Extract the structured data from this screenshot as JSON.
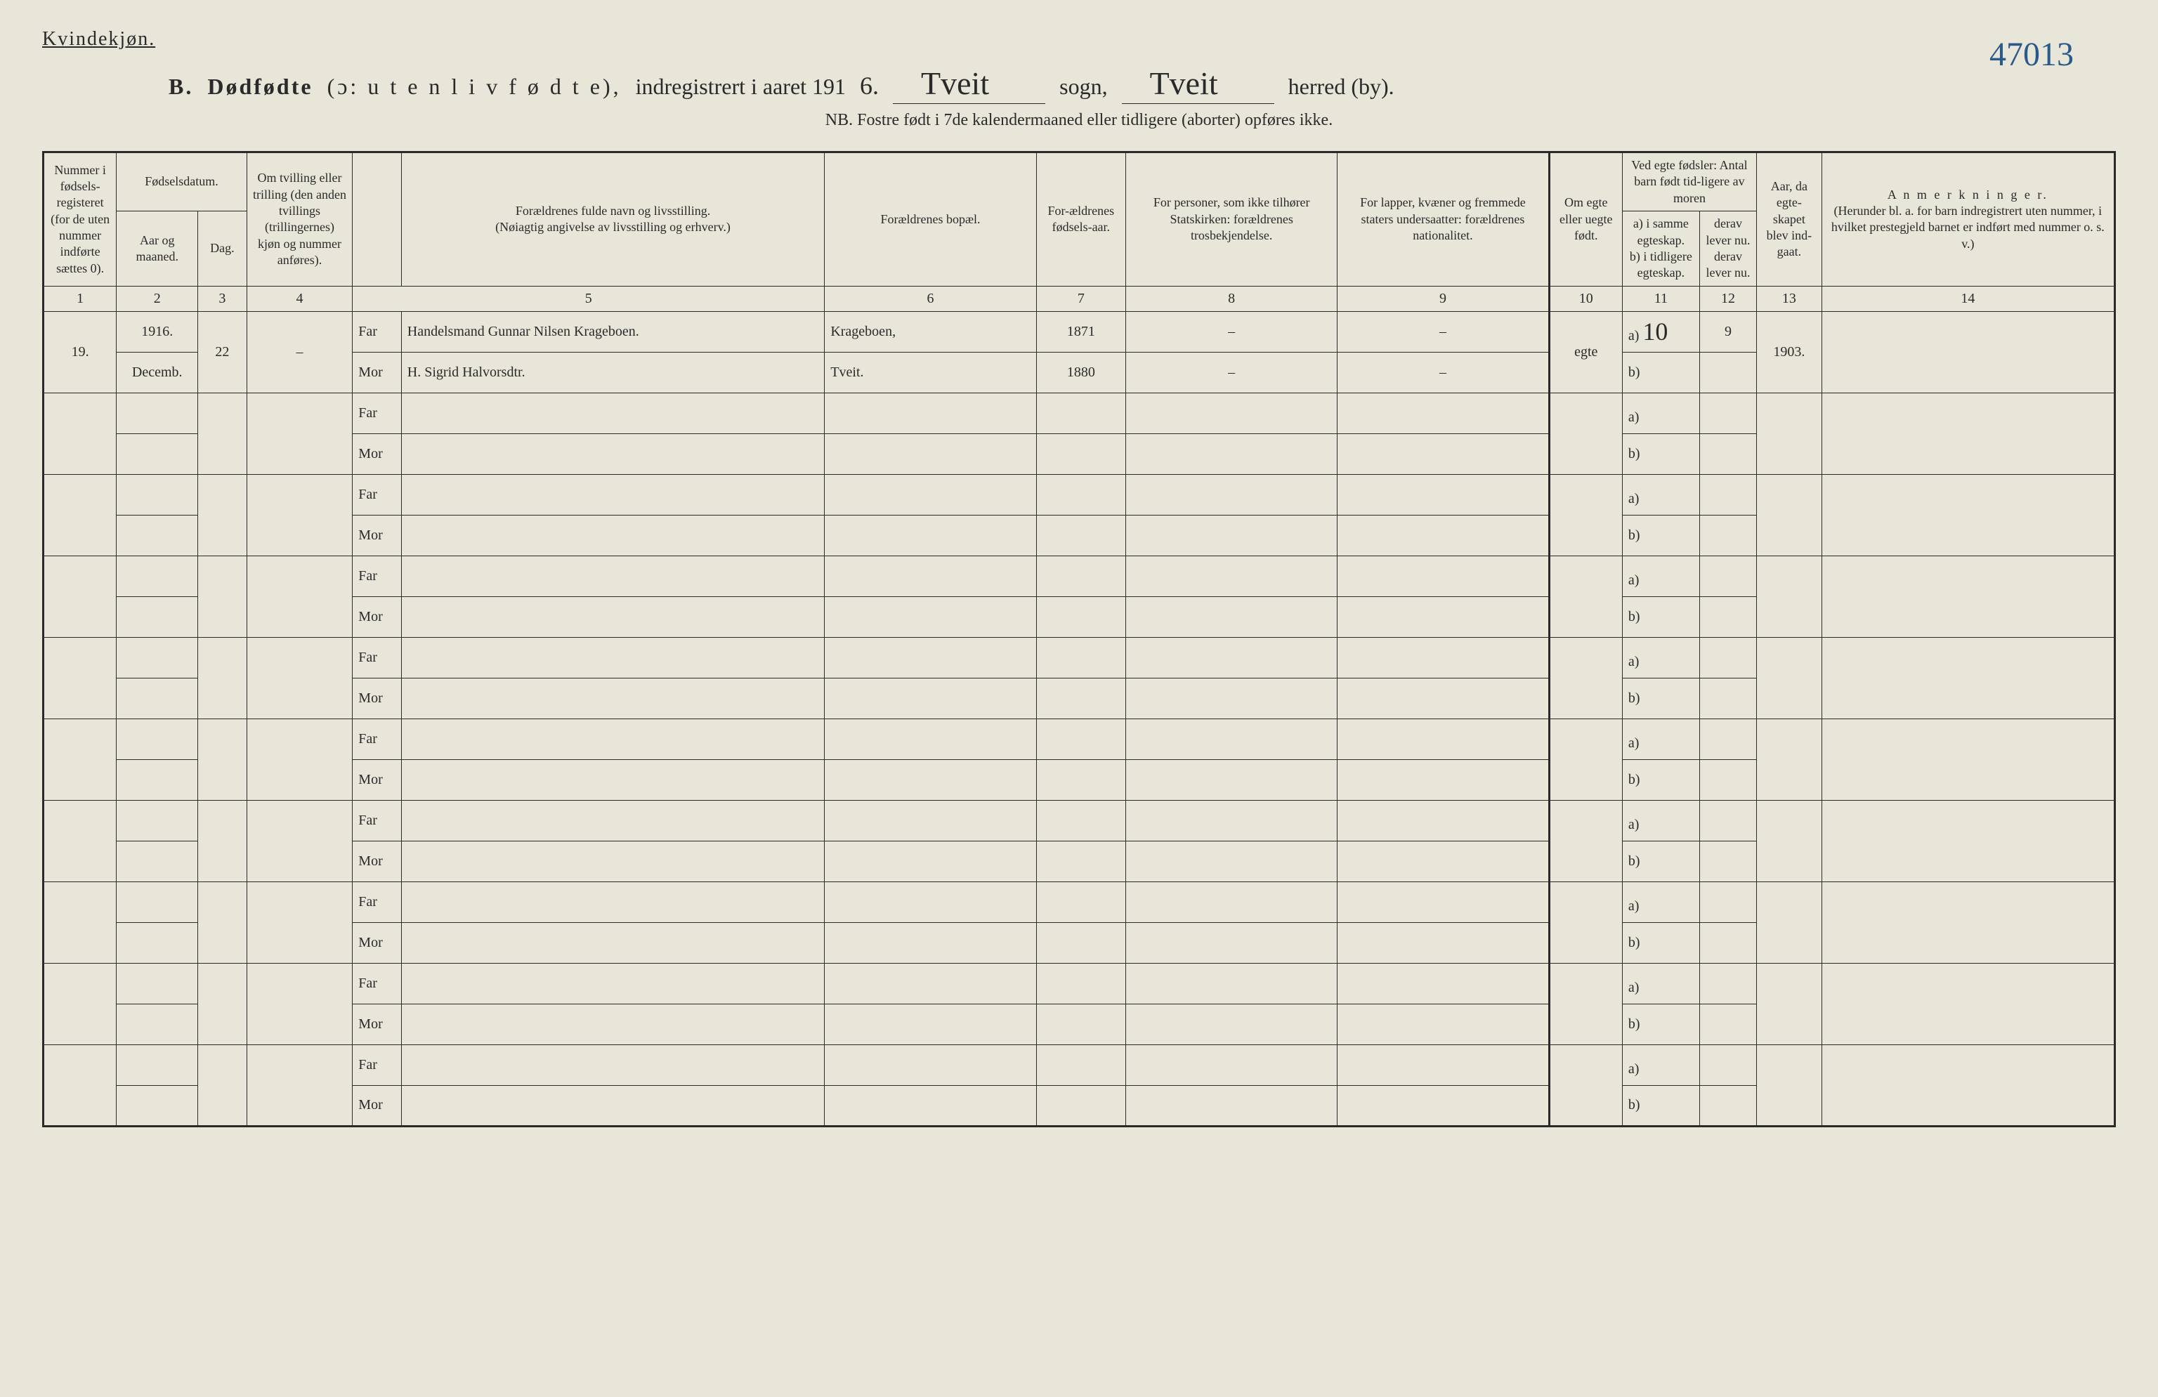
{
  "corner_number": "47013",
  "top_label": "Kvindekjøn.",
  "title": {
    "prefix_letter": "B.",
    "main": "Dødfødte",
    "paren": "(ɔ: u t e n  l i v  f ø d t e),",
    "mid": "indregistrert i aaret 191",
    "year_suffix": "6.",
    "sogn_label": "sogn,",
    "herred_label": "herred (by).",
    "sogn_value": "Tveit",
    "herred_value": "Tveit"
  },
  "subnote": "NB.  Fostre født i 7de kalendermaaned eller tidligere (aborter) opføres ikke.",
  "headers": {
    "c1": "Nummer i fødsels-registeret (for de uten nummer indførte sættes 0).",
    "c2_top": "Fødselsdatum.",
    "c2a": "Aar og maaned.",
    "c2b": "Dag.",
    "c3": "Om tvilling eller trilling (den anden tvillings (trillingernes) kjøn og nummer anføres).",
    "c4_top": "Forældrenes fulde navn og livsstilling.",
    "c4_sub": "(Nøiagtig angivelse av livsstilling og erhverv.)",
    "far": "Far",
    "mor": "Mor",
    "c5": "Forældrenes bopæl.",
    "c6": "For-ældrenes fødsels-aar.",
    "c7": "For personer, som ikke tilhører Statskirken: forældrenes trosbekjendelse.",
    "c8": "For lapper, kvæner og fremmede staters undersaatter: forældrenes nationalitet.",
    "c9": "Om egte eller uegte født.",
    "c10_top": "Ved egte fødsler: Antal barn født tid-ligere av moren",
    "c10a": "a) i samme egteskap.",
    "c10b": "b) i tidligere egteskap.",
    "c10a2": "derav lever nu.",
    "c10b2": "derav lever nu.",
    "c11": "Aar, da egte-skapet blev ind-gaat.",
    "c12_top": "A n m e r k n i n g e r.",
    "c12_sub": "(Herunder bl. a. for barn indregistrert uten nummer, i hvilket prestegjeld barnet er indført med nummer o. s. v.)"
  },
  "colnums": [
    "1",
    "2",
    "3",
    "4",
    "",
    "5",
    "6",
    "7",
    "8",
    "9",
    "10",
    "11",
    "12",
    "13",
    "14"
  ],
  "sub_ab": {
    "a": "a)",
    "b": "b)"
  },
  "record": {
    "num": "19.",
    "year": "1916.",
    "month": "Decemb.",
    "day": "22",
    "twin": "–",
    "far_name": "Handelsmand Gunnar Nilsen Krageboen.",
    "mor_name": "H. Sigrid Halvorsdtr.",
    "far_bopel": "Krageboen,",
    "mor_bopel": "Tveit.",
    "far_aar": "1871",
    "mor_aar": "1880",
    "far_tros": "–",
    "mor_tros": "–",
    "far_nat": "–",
    "mor_nat": "–",
    "egte": "egte",
    "c10a_val": "10",
    "c10a2_val": "9",
    "year_married": "1903.",
    "anm": ""
  },
  "dash": "–"
}
